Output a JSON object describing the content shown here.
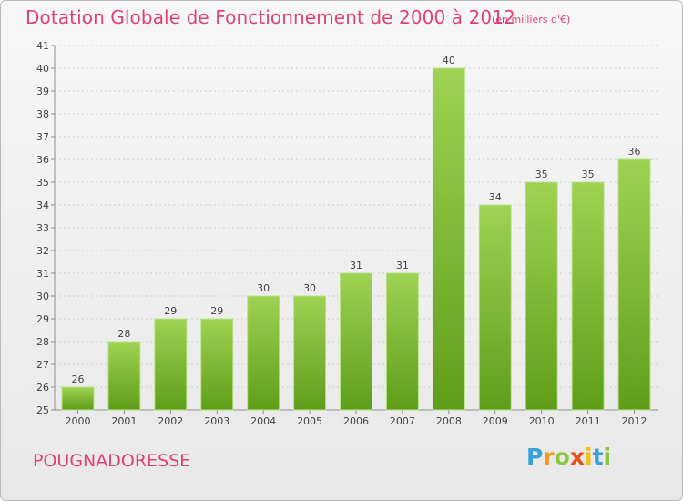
{
  "header": {
    "title": "Dotation Globale de Fonctionnement de 2000 à 2012",
    "subtitle": "(en milliers d'€)"
  },
  "footer": {
    "place_name": "POUGNADORESSE",
    "brand": {
      "letters": [
        "P",
        "r",
        "o",
        "x",
        "i",
        "t",
        "i"
      ],
      "colors": [
        "#3aa0d8",
        "#f39a1e",
        "#8cc63f",
        "#e94e1b",
        "#f4c20d",
        "#3aa0d8",
        "#8cc63f"
      ]
    }
  },
  "colors": {
    "title": "#e0407a",
    "bar_top": "#9fd252",
    "bar_bottom": "#5f9e1a",
    "axis": "#8f8f8f",
    "grid": "#cfcfcf"
  },
  "chart_data": {
    "type": "bar",
    "title": "Dotation Globale de Fonctionnement de 2000 à 2012",
    "subtitle": "(en milliers d'€)",
    "categories": [
      "2000",
      "2001",
      "2002",
      "2003",
      "2004",
      "2005",
      "2006",
      "2007",
      "2008",
      "2009",
      "2010",
      "2011",
      "2012"
    ],
    "values": [
      26,
      28,
      29,
      29,
      30,
      30,
      31,
      31,
      40,
      34,
      35,
      35,
      36
    ],
    "ylim": [
      25,
      41
    ],
    "yticks": [
      25,
      26,
      27,
      28,
      29,
      30,
      31,
      32,
      33,
      34,
      35,
      36,
      37,
      38,
      39,
      40,
      41
    ],
    "grid": true,
    "data_labels": true
  }
}
